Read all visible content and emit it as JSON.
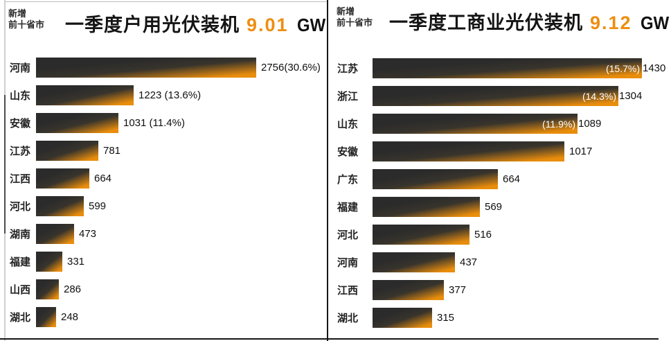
{
  "accent_color": "#ee8e12",
  "bar_dark_color": "#2b2b2b",
  "bar_orange_color": "#e98d0c",
  "chart_data": [
    {
      "type": "bar",
      "orientation": "horizontal",
      "subtitle_lines": [
        "新增",
        "前十省市"
      ],
      "title": "一季度户用光伏装机",
      "total_value": "9.01",
      "total_unit": "GW",
      "categories": [
        "河南",
        "山东",
        "安徽",
        "江苏",
        "江西",
        "河北",
        "湖南",
        "福建",
        "山西",
        "湖北"
      ],
      "values": [
        2756,
        1223,
        1031,
        781,
        664,
        599,
        473,
        331,
        286,
        248
      ],
      "bar_labels": [
        "2756(30.6%)",
        "1223 (13.6%)",
        "1031 (11.4%)",
        "781",
        "664",
        "599",
        "473",
        "331",
        "286",
        "248"
      ],
      "inside_bar_labels": [
        "",
        "",
        "",
        "",
        "",
        "",
        "",
        "",
        "",
        ""
      ],
      "percent_shares": [
        "30.6%",
        "13.6%",
        "11.4%",
        "",
        "",
        "",
        "",
        "",
        "",
        ""
      ],
      "xlim": [
        0,
        2756
      ],
      "grid": false,
      "legend": "none"
    },
    {
      "type": "bar",
      "orientation": "horizontal",
      "subtitle_lines": [
        "新增",
        "前十省市"
      ],
      "title": "一季度工商业光伏装机",
      "total_value": "9.12",
      "total_unit": "GW",
      "categories": [
        "江苏",
        "浙江",
        "山东",
        "安徽",
        "广东",
        "福建",
        "河北",
        "河南",
        "江西",
        "湖北"
      ],
      "values": [
        1430,
        1304,
        1089,
        1017,
        664,
        569,
        516,
        437,
        377,
        315
      ],
      "bar_labels": [
        "1430",
        "1304",
        "1089",
        "1017",
        "664",
        "569",
        "516",
        "437",
        "377",
        "315"
      ],
      "inside_bar_labels": [
        "(15.7%)",
        "(14.3%)",
        "(11.9%)",
        "",
        "",
        "",
        "",
        "",
        "",
        ""
      ],
      "percent_shares": [
        "15.7%",
        "14.3%",
        "11.9%",
        "",
        "",
        "",
        "",
        "",
        "",
        ""
      ],
      "xlim": [
        0,
        1430
      ],
      "grid": false,
      "legend": "none"
    }
  ]
}
